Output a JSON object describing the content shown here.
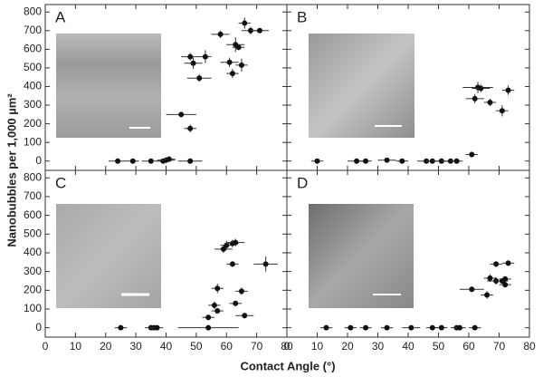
{
  "axis_labels": {
    "x": "Contact Angle (°)",
    "y": "Nanobubbles per 1,000 µm²"
  },
  "chart_data": [
    {
      "type": "scatter",
      "title": "A",
      "xlim": [
        0,
        80
      ],
      "ylim": [
        -50,
        840
      ],
      "yticks": [
        0,
        100,
        200,
        300,
        400,
        500,
        600,
        700,
        800
      ],
      "x": [
        24,
        29,
        35,
        39,
        40,
        41,
        48,
        45,
        48,
        48,
        49,
        53,
        51,
        58,
        61,
        62,
        63,
        64,
        65,
        66,
        68,
        71
      ],
      "y": [
        0,
        0,
        0,
        0,
        5,
        10,
        0,
        250,
        175,
        560,
        525,
        560,
        445,
        680,
        530,
        470,
        625,
        610,
        515,
        740,
        700,
        700
      ],
      "xerr": [
        3,
        2,
        3,
        2,
        3,
        2,
        4,
        5,
        2,
        3,
        3,
        2,
        4,
        3,
        3,
        2,
        3,
        2,
        2,
        2,
        3,
        3
      ],
      "yerr": [
        10,
        10,
        10,
        10,
        15,
        15,
        10,
        15,
        20,
        20,
        30,
        35,
        20,
        20,
        25,
        25,
        40,
        15,
        35,
        30,
        20,
        10
      ]
    },
    {
      "type": "scatter",
      "title": "B",
      "xlim": [
        0,
        80
      ],
      "ylim": [
        -50,
        840
      ],
      "x": [
        10,
        23,
        26,
        33,
        38,
        46,
        48,
        51,
        54,
        56,
        61,
        62,
        63,
        64,
        67,
        71,
        73
      ],
      "y": [
        0,
        0,
        0,
        5,
        0,
        0,
        0,
        0,
        0,
        0,
        35,
        335,
        395,
        390,
        315,
        270,
        380
      ],
      "xerr": [
        2,
        3,
        2,
        3,
        2,
        3,
        2,
        3,
        3,
        2,
        2,
        3,
        5,
        3,
        2,
        2,
        2
      ],
      "yerr": [
        10,
        10,
        10,
        10,
        10,
        10,
        10,
        10,
        10,
        10,
        15,
        25,
        30,
        20,
        20,
        30,
        25
      ]
    },
    {
      "type": "scatter",
      "title": "C",
      "xlim": [
        0,
        80
      ],
      "ylim": [
        -50,
        840
      ],
      "xticks": [
        0,
        10,
        20,
        30,
        40,
        50,
        60,
        70,
        80
      ],
      "yticks": [
        0,
        100,
        200,
        300,
        400,
        500,
        600,
        700,
        800
      ],
      "x": [
        25,
        35,
        36,
        37,
        54,
        54,
        56,
        57,
        57,
        59,
        60,
        62,
        63,
        62,
        63,
        65,
        66,
        73
      ],
      "y": [
        0,
        0,
        0,
        0,
        0,
        55,
        120,
        90,
        210,
        420,
        440,
        450,
        455,
        340,
        130,
        195,
        65,
        340
      ],
      "xerr": [
        2,
        2,
        2,
        2,
        10,
        2,
        2,
        2,
        2,
        3,
        2,
        2,
        3,
        2,
        2,
        2,
        3,
        4
      ],
      "yerr": [
        10,
        10,
        10,
        10,
        10,
        15,
        20,
        15,
        25,
        20,
        25,
        20,
        20,
        15,
        15,
        20,
        15,
        40
      ]
    },
    {
      "type": "scatter",
      "title": "D",
      "xlim": [
        0,
        80
      ],
      "ylim": [
        -50,
        840
      ],
      "xticks": [
        0,
        10,
        20,
        30,
        40,
        50,
        60,
        70,
        80
      ],
      "x": [
        13,
        21,
        26,
        33,
        41,
        48,
        51,
        56,
        57,
        62,
        61,
        66,
        67,
        69,
        69,
        71,
        72,
        72,
        73
      ],
      "y": [
        0,
        0,
        0,
        0,
        0,
        0,
        0,
        0,
        0,
        0,
        205,
        175,
        265,
        340,
        250,
        250,
        230,
        260,
        345
      ],
      "xerr": [
        2,
        2,
        2,
        2,
        3,
        2,
        2,
        2,
        2,
        2,
        4,
        2,
        2,
        2,
        3,
        2,
        2,
        2,
        2
      ],
      "yerr": [
        10,
        10,
        10,
        10,
        10,
        10,
        10,
        10,
        10,
        10,
        15,
        20,
        20,
        15,
        20,
        15,
        15,
        15,
        15
      ]
    }
  ]
}
